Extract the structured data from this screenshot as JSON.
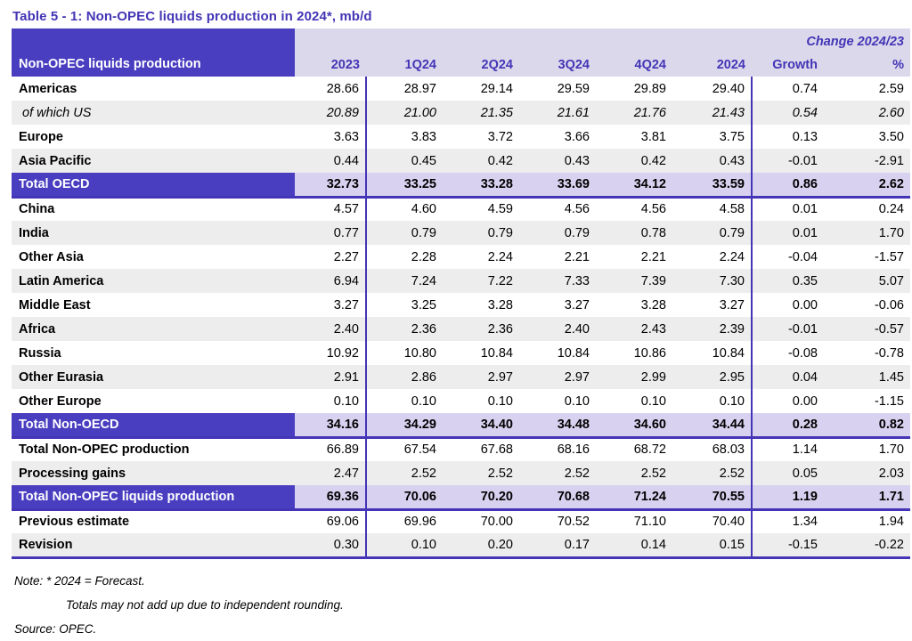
{
  "title": "Table 5 - 1: Non-OPEC liquids production in 2024*, mb/d",
  "colors": {
    "accent_purple": "#4a3ec0",
    "line_purple": "#4335b5",
    "header_lavender": "#dbd8ec",
    "total_row_lavender": "#d8d2f0",
    "stripe_gray": "#ededed"
  },
  "table": {
    "corner_label": "Non-OPEC liquids production",
    "change_header": "Change 2024/23",
    "columns": [
      "2023",
      "1Q24",
      "2Q24",
      "3Q24",
      "4Q24",
      "2024",
      "Growth",
      "%"
    ],
    "rows": [
      {
        "label": "Americas",
        "style": "normal",
        "shade": false,
        "border_after": false,
        "values": [
          "28.66",
          "28.97",
          "29.14",
          "29.59",
          "29.89",
          "29.40",
          "0.74",
          "2.59"
        ]
      },
      {
        "label": "of which US",
        "style": "italic",
        "shade": true,
        "border_after": false,
        "values": [
          "20.89",
          "21.00",
          "21.35",
          "21.61",
          "21.76",
          "21.43",
          "0.54",
          "2.60"
        ]
      },
      {
        "label": "Europe",
        "style": "normal",
        "shade": false,
        "border_after": false,
        "values": [
          "3.63",
          "3.83",
          "3.72",
          "3.66",
          "3.81",
          "3.75",
          "0.13",
          "3.50"
        ]
      },
      {
        "label": "Asia Pacific",
        "style": "normal",
        "shade": true,
        "border_after": false,
        "values": [
          "0.44",
          "0.45",
          "0.42",
          "0.43",
          "0.42",
          "0.43",
          "-0.01",
          "-2.91"
        ]
      },
      {
        "label": "Total OECD",
        "style": "total",
        "shade": false,
        "border_after": true,
        "values": [
          "32.73",
          "33.25",
          "33.28",
          "33.69",
          "34.12",
          "33.59",
          "0.86",
          "2.62"
        ]
      },
      {
        "label": "China",
        "style": "normal",
        "shade": false,
        "border_after": false,
        "values": [
          "4.57",
          "4.60",
          "4.59",
          "4.56",
          "4.56",
          "4.58",
          "0.01",
          "0.24"
        ]
      },
      {
        "label": "India",
        "style": "normal",
        "shade": true,
        "border_after": false,
        "values": [
          "0.77",
          "0.79",
          "0.79",
          "0.79",
          "0.78",
          "0.79",
          "0.01",
          "1.70"
        ]
      },
      {
        "label": "Other Asia",
        "style": "normal",
        "shade": false,
        "border_after": false,
        "values": [
          "2.27",
          "2.28",
          "2.24",
          "2.21",
          "2.21",
          "2.24",
          "-0.04",
          "-1.57"
        ]
      },
      {
        "label": "Latin America",
        "style": "normal",
        "shade": true,
        "border_after": false,
        "values": [
          "6.94",
          "7.24",
          "7.22",
          "7.33",
          "7.39",
          "7.30",
          "0.35",
          "5.07"
        ]
      },
      {
        "label": "Middle East",
        "style": "normal",
        "shade": false,
        "border_after": false,
        "values": [
          "3.27",
          "3.25",
          "3.28",
          "3.27",
          "3.28",
          "3.27",
          "0.00",
          "-0.06"
        ]
      },
      {
        "label": "Africa",
        "style": "normal",
        "shade": true,
        "border_after": false,
        "values": [
          "2.40",
          "2.36",
          "2.36",
          "2.40",
          "2.43",
          "2.39",
          "-0.01",
          "-0.57"
        ]
      },
      {
        "label": "Russia",
        "style": "normal",
        "shade": false,
        "border_after": false,
        "values": [
          "10.92",
          "10.80",
          "10.84",
          "10.84",
          "10.86",
          "10.84",
          "-0.08",
          "-0.78"
        ]
      },
      {
        "label": "Other Eurasia",
        "style": "normal",
        "shade": true,
        "border_after": false,
        "values": [
          "2.91",
          "2.86",
          "2.97",
          "2.97",
          "2.99",
          "2.95",
          "0.04",
          "1.45"
        ]
      },
      {
        "label": "Other Europe",
        "style": "normal",
        "shade": false,
        "border_after": false,
        "values": [
          "0.10",
          "0.10",
          "0.10",
          "0.10",
          "0.10",
          "0.10",
          "0.00",
          "-1.15"
        ]
      },
      {
        "label": "Total Non-OECD",
        "style": "total",
        "shade": false,
        "border_after": true,
        "values": [
          "34.16",
          "34.29",
          "34.40",
          "34.48",
          "34.60",
          "34.44",
          "0.28",
          "0.82"
        ]
      },
      {
        "label": "Total Non-OPEC production",
        "style": "normal",
        "shade": false,
        "border_after": false,
        "values": [
          "66.89",
          "67.54",
          "67.68",
          "68.16",
          "68.72",
          "68.03",
          "1.14",
          "1.70"
        ]
      },
      {
        "label": "Processing gains",
        "style": "normal",
        "shade": true,
        "border_after": false,
        "values": [
          "2.47",
          "2.52",
          "2.52",
          "2.52",
          "2.52",
          "2.52",
          "0.05",
          "2.03"
        ]
      },
      {
        "label": "Total Non-OPEC liquids production",
        "style": "total",
        "shade": false,
        "border_after": true,
        "values": [
          "69.36",
          "70.06",
          "70.20",
          "70.68",
          "71.24",
          "70.55",
          "1.19",
          "1.71"
        ]
      },
      {
        "label": "Previous estimate",
        "style": "normal",
        "shade": false,
        "border_after": false,
        "values": [
          "69.06",
          "69.96",
          "70.00",
          "70.52",
          "71.10",
          "70.40",
          "1.34",
          "1.94"
        ]
      },
      {
        "label": "Revision",
        "style": "normal",
        "shade": true,
        "border_after": true,
        "values": [
          "0.30",
          "0.10",
          "0.20",
          "0.17",
          "0.14",
          "0.15",
          "-0.15",
          "-0.22"
        ]
      }
    ]
  },
  "notes": [
    "Note: * 2024 = Forecast.",
    "Totals may not add up due to independent rounding.",
    "Source: OPEC."
  ]
}
